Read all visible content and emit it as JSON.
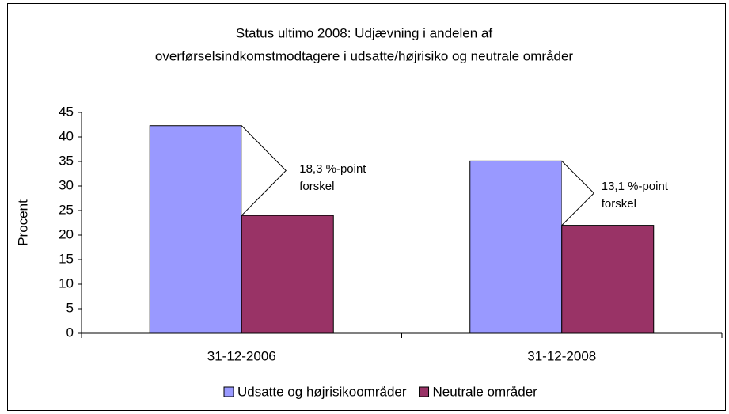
{
  "chart_data": {
    "type": "bar",
    "title": [
      "Status ultimo 2008: Udjævning i andelen af",
      "overførselsindkomstmodtagere i udsatte/højrisiko og neutrale områder"
    ],
    "y_label": "Procent",
    "categories": [
      "31-12-2006",
      "31-12-2008"
    ],
    "series": [
      {
        "name": "Udsatte og højrisikoområder",
        "color": "#9999ff",
        "values": [
          42.3,
          35.1
        ]
      },
      {
        "name": "Neutrale områder",
        "color": "#993366",
        "values": [
          24.0,
          22.0
        ]
      }
    ],
    "annotations": [
      {
        "category": 0,
        "lines": [
          "18,3 %-point",
          "forskel"
        ]
      },
      {
        "category": 1,
        "lines": [
          "13,1 %-point",
          "forskel"
        ]
      }
    ],
    "ylim": [
      0,
      45
    ],
    "yticks": [
      0,
      5,
      10,
      15,
      20,
      25,
      30,
      35,
      40,
      45
    ],
    "legend": "bottom"
  }
}
